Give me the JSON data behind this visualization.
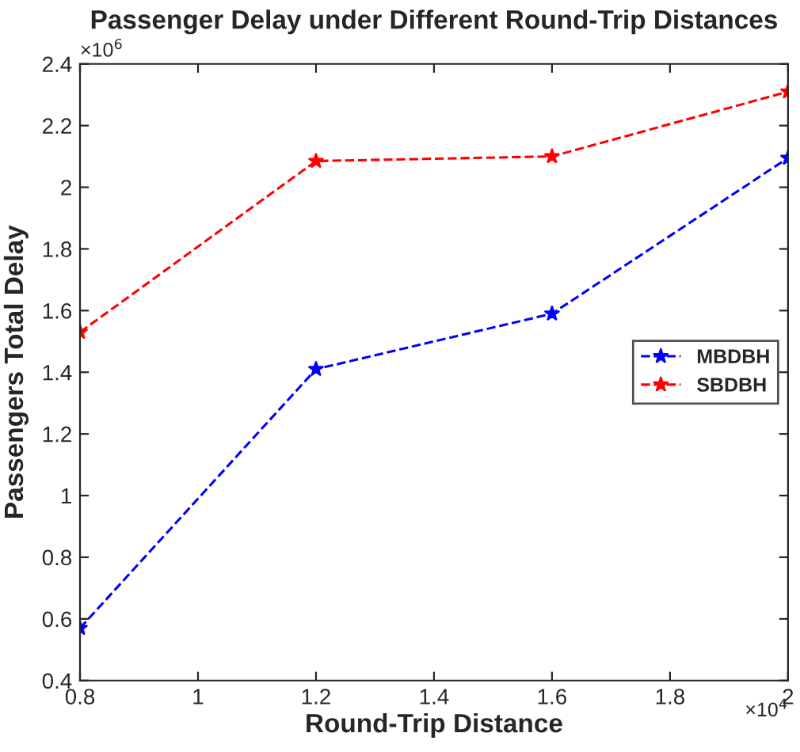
{
  "chart_data": {
    "type": "line",
    "title": "Passenger Delay under Different Round-Trip Distances",
    "xlabel": "Round-Trip Distance",
    "ylabel": "Passengers Total Delay",
    "x": [
      0.8,
      1.2,
      1.6,
      2
    ],
    "series": [
      {
        "name": "MBDBH",
        "color": "#0000ff",
        "values": [
          0.57,
          1.41,
          1.59,
          2.095
        ]
      },
      {
        "name": "SBDBH",
        "color": "#ff0000",
        "values": [
          1.53,
          2.085,
          2.1,
          2.31
        ]
      }
    ],
    "xlim": [
      0.8,
      2
    ],
    "xticks": [
      0.8,
      1,
      1.2,
      1.4,
      1.6,
      1.8,
      2
    ],
    "ylim": [
      0.4,
      2.4
    ],
    "yticks": [
      0.4,
      0.6,
      0.8,
      1,
      1.2,
      1.4,
      1.6,
      1.8,
      2,
      2.2,
      2.4
    ],
    "annotations": [
      "×10$^{6}$",
      "×10$^{4}$"
    ],
    "grid": false,
    "legend": "right",
    "marker": "star",
    "line_style": "dashed"
  }
}
